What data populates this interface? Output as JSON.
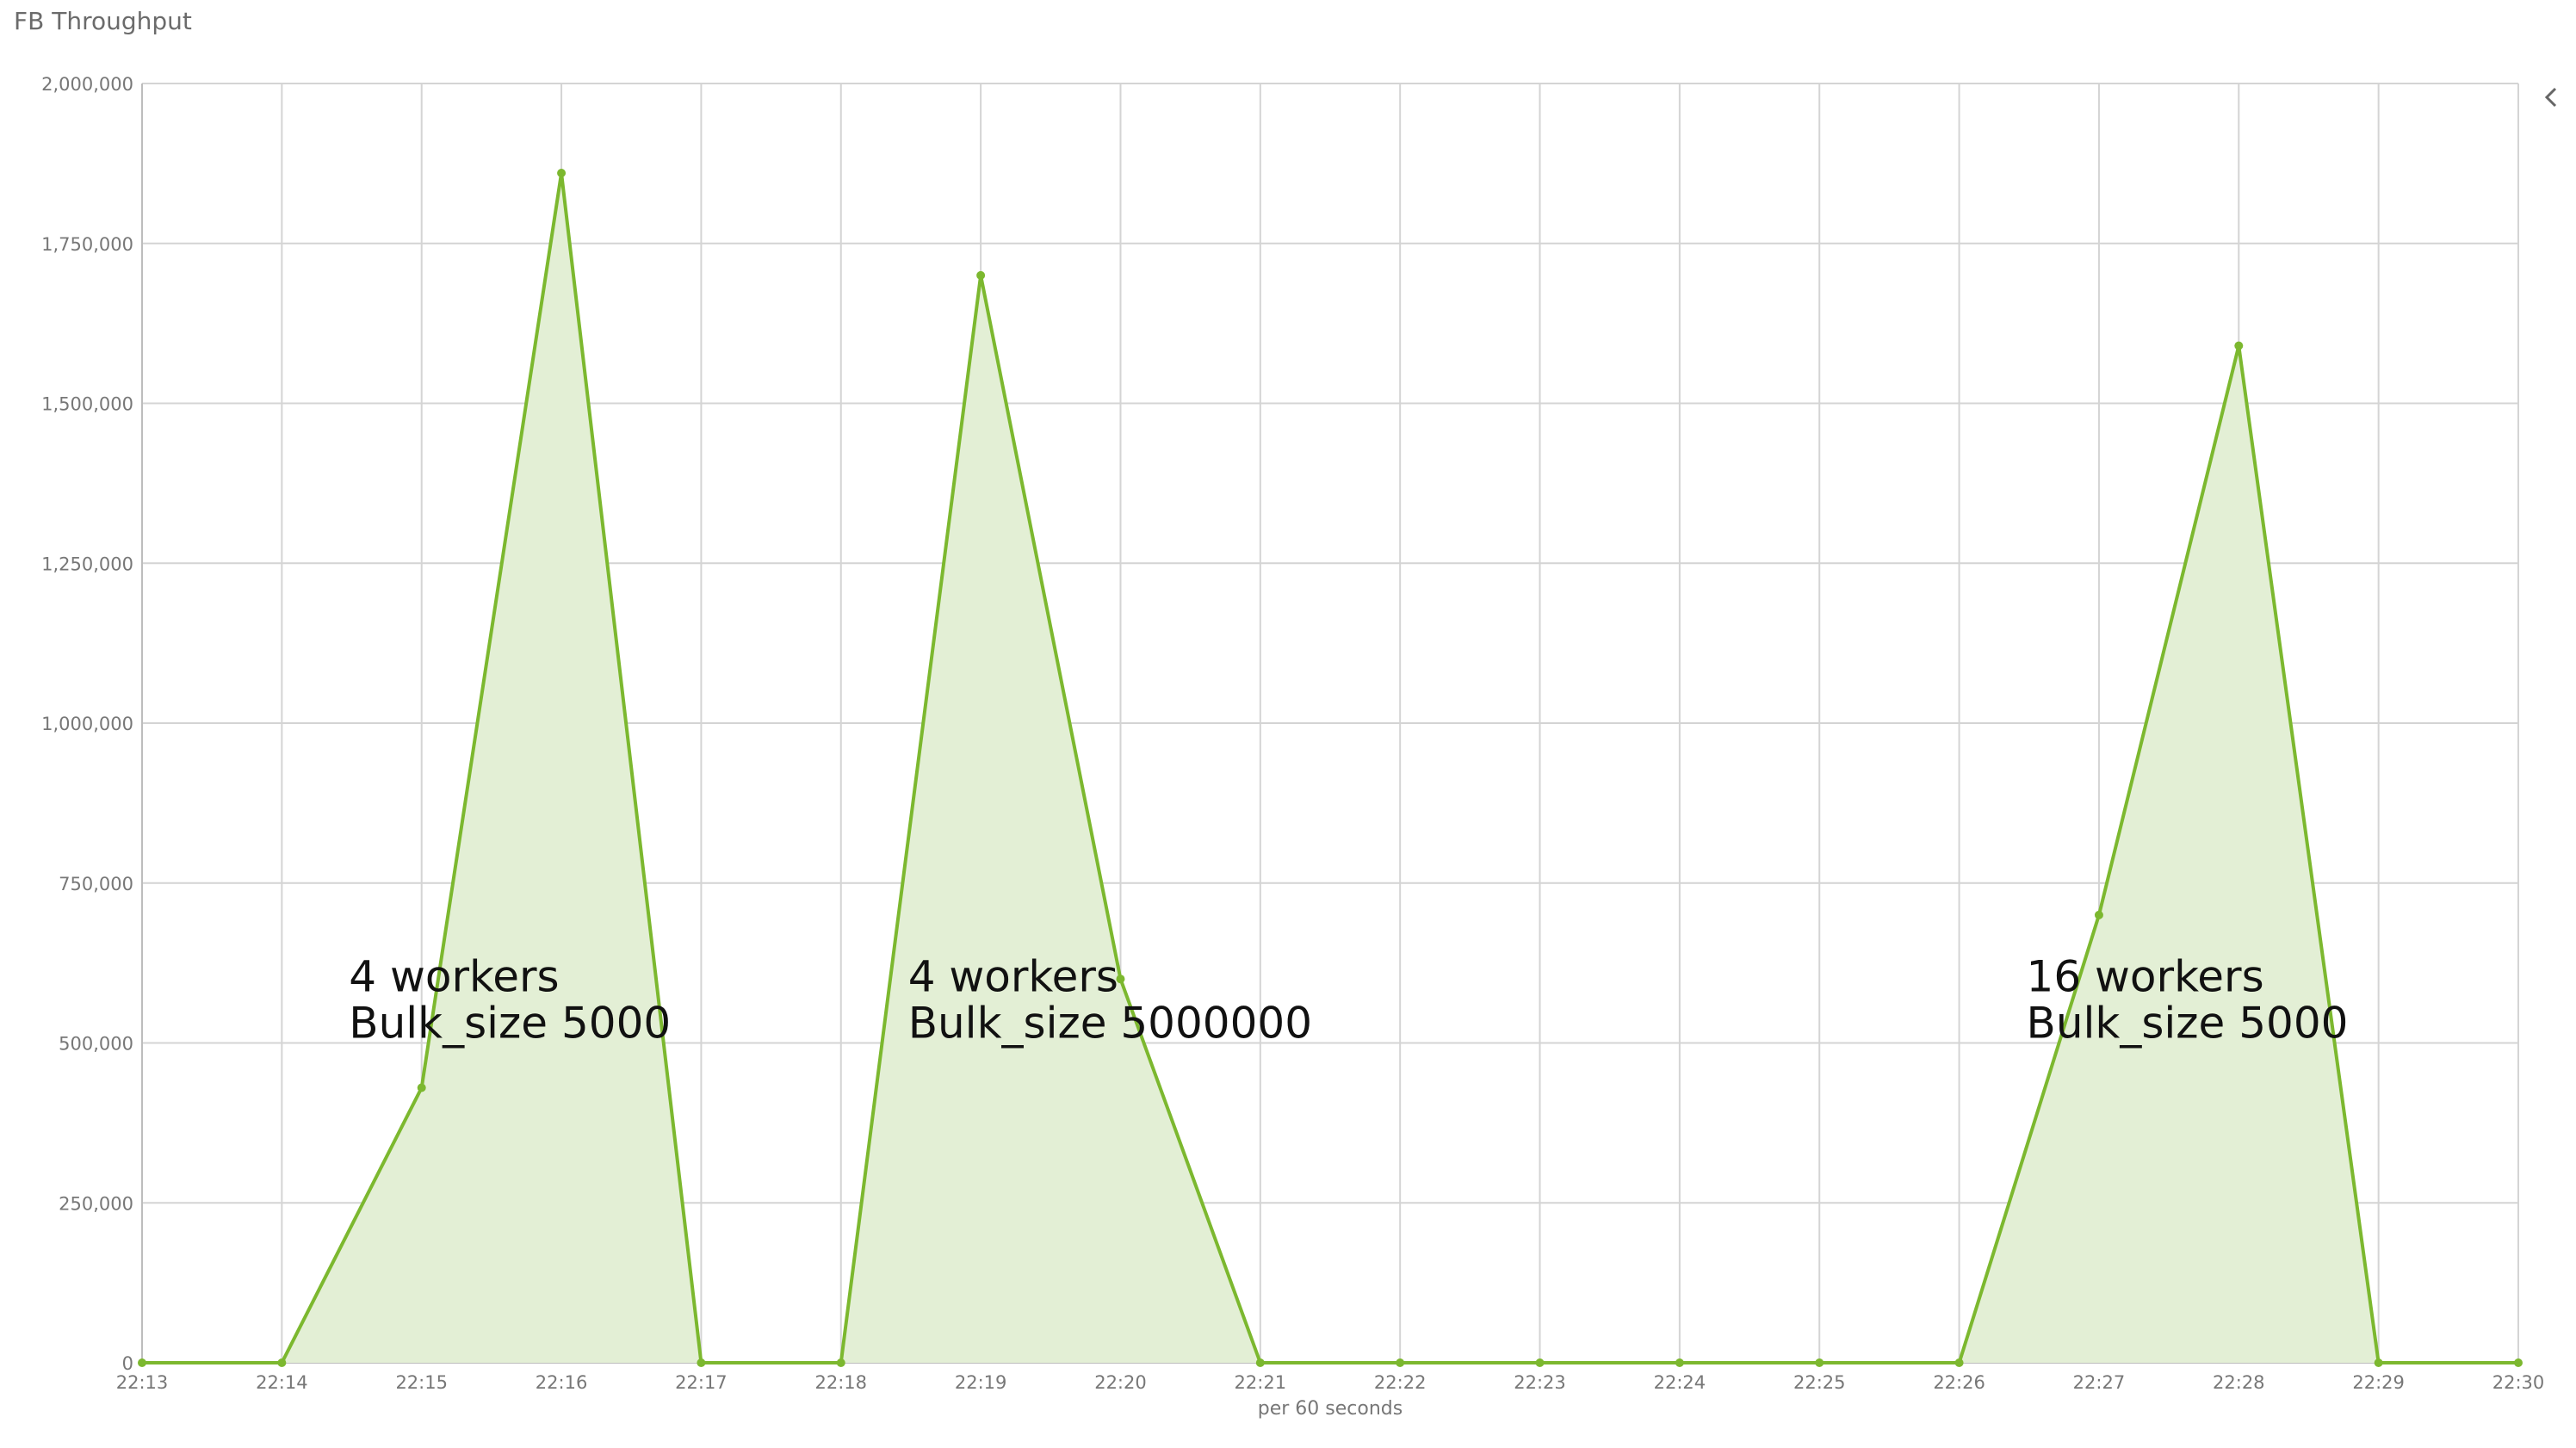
{
  "panel": {
    "title": "FB Throughput"
  },
  "icons": {
    "collapse": "chevron-left-icon"
  },
  "colors": {
    "series_line": "#7cb82f",
    "series_fill": "#e3efd5",
    "grid": "#d4d4d4"
  },
  "chart_data": {
    "type": "area",
    "title": "FB Throughput",
    "xlabel": "per 60 seconds",
    "ylabel": "",
    "x": [
      "22:13",
      "22:14",
      "22:15",
      "22:16",
      "22:17",
      "22:18",
      "22:19",
      "22:20",
      "22:21",
      "22:22",
      "22:23",
      "22:24",
      "22:25",
      "22:26",
      "22:27",
      "22:28",
      "22:29",
      "22:30"
    ],
    "series": [
      {
        "values": [
          0,
          0,
          430000,
          1860000,
          0,
          0,
          1700000,
          600000,
          0,
          0,
          0,
          0,
          0,
          0,
          700000,
          1590000,
          0,
          0
        ]
      }
    ],
    "ylim": [
      0,
      2000000
    ],
    "yticks": [
      "0",
      "250,000",
      "500,000",
      "750,000",
      "1,000,000",
      "1,250,000",
      "1,500,000",
      "1,750,000",
      "2,000,000"
    ],
    "grid": true,
    "annotations": [
      {
        "lines": [
          "4 workers",
          "Bulk_size 5000"
        ],
        "x": "22:14",
        "y": 500000
      },
      {
        "lines": [
          "4 workers",
          "Bulk_size 5000000"
        ],
        "x": "22:18",
        "y": 500000
      },
      {
        "lines": [
          "16 workers",
          "Bulk_size 5000"
        ],
        "x": "22:26",
        "y": 500000
      }
    ]
  }
}
